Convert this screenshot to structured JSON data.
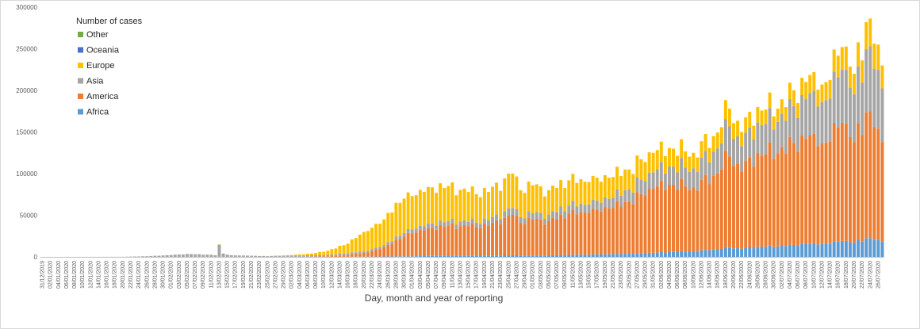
{
  "chart_data": {
    "type": "bar",
    "stacked": true,
    "title": "",
    "xlabel": "Day, month and year of reporting",
    "ylabel": "",
    "ylim": [
      0,
      300000
    ],
    "yticks": [
      0,
      50000,
      100000,
      150000,
      200000,
      250000,
      300000
    ],
    "grid": false,
    "legend": {
      "title": "Number of cases",
      "placement": "top-left",
      "entries": [
        "Other",
        "Oceania",
        "Europe",
        "Asia",
        "America",
        "Africa"
      ]
    },
    "colors": {
      "Africa": "#5b9bd5",
      "America": "#ed7d31",
      "Asia": "#a5a5a5",
      "Europe": "#ffc000",
      "Oceania": "#4472c4",
      "Other": "#70ad47"
    },
    "start_date": "2019-12-31",
    "end_date": "2020-07-27",
    "x_tick_labels": [
      "31/12/2019",
      "02/01/2020",
      "04/01/2020",
      "06/01/2020",
      "08/01/2020",
      "10/01/2020",
      "12/01/2020",
      "14/01/2020",
      "16/01/2020",
      "18/01/2020",
      "20/01/2020",
      "22/01/2020",
      "24/01/2020",
      "26/01/2020",
      "28/01/2020",
      "30/01/2020",
      "01/02/2020",
      "03/02/2020",
      "05/02/2020",
      "07/02/2020",
      "09/02/2020",
      "11/02/2020",
      "13/02/2020",
      "15/02/2020",
      "17/02/2020",
      "19/02/2020",
      "21/02/2020",
      "23/02/2020",
      "25/02/2020",
      "27/02/2020",
      "29/02/2020",
      "02/03/2020",
      "04/03/2020",
      "06/03/2020",
      "08/03/2020",
      "10/03/2020",
      "12/03/2020",
      "14/03/2020",
      "16/03/2020",
      "18/03/2020",
      "20/03/2020",
      "22/03/2020",
      "24/03/2020",
      "26/03/2020",
      "28/03/2020",
      "30/03/2020",
      "01/04/2020",
      "03/04/2020",
      "05/04/2020",
      "07/04/2020",
      "09/04/2020",
      "11/04/2020",
      "13/04/2020",
      "15/04/2020",
      "17/04/2020",
      "19/04/2020",
      "21/04/2020",
      "23/04/2020",
      "25/04/2020",
      "27/04/2020",
      "29/04/2020",
      "01/05/2020",
      "03/05/2020",
      "05/05/2020",
      "07/05/2020",
      "09/05/2020",
      "11/05/2020",
      "13/05/2020",
      "15/05/2020",
      "17/05/2020",
      "19/05/2020",
      "21/05/2020",
      "23/05/2020",
      "25/05/2020",
      "27/05/2020",
      "29/05/2020",
      "31/05/2020",
      "02/06/2020",
      "04/06/2020",
      "06/06/2020",
      "08/06/2020",
      "10/06/2020",
      "12/06/2020",
      "14/06/2020",
      "16/06/2020",
      "18/06/2020",
      "20/06/2020",
      "22/06/2020",
      "24/06/2020",
      "26/06/2020",
      "28/06/2020",
      "30/06/2020",
      "02/07/2020",
      "04/07/2020",
      "06/07/2020",
      "08/07/2020",
      "10/07/2020",
      "12/07/2020",
      "14/07/2020",
      "16/07/2020",
      "18/07/2020",
      "20/07/2020",
      "22/07/2020",
      "24/07/2020",
      "26/07/2020"
    ],
    "total_keyframes": [
      [
        "2019-12-31",
        0
      ],
      [
        "2020-01-20",
        100
      ],
      [
        "2020-01-26",
        800
      ],
      [
        "2020-01-31",
        2000
      ],
      [
        "2020-02-05",
        3500
      ],
      [
        "2020-02-10",
        2800
      ],
      [
        "2020-02-12",
        2000
      ],
      [
        "2020-02-13",
        15000
      ],
      [
        "2020-02-14",
        4000
      ],
      [
        "2020-02-16",
        2000
      ],
      [
        "2020-02-20",
        1500
      ],
      [
        "2020-02-25",
        1000
      ],
      [
        "2020-03-01",
        2000
      ],
      [
        "2020-03-05",
        3000
      ],
      [
        "2020-03-10",
        6000
      ],
      [
        "2020-03-15",
        14000
      ],
      [
        "2020-03-20",
        30000
      ],
      [
        "2020-03-25",
        45000
      ],
      [
        "2020-03-28",
        65000
      ],
      [
        "2020-04-01",
        73000
      ],
      [
        "2020-04-05",
        84000
      ],
      [
        "2020-04-10",
        85000
      ],
      [
        "2020-04-15",
        78000
      ],
      [
        "2020-04-20",
        78000
      ],
      [
        "2020-04-26",
        100000
      ],
      [
        "2020-04-28",
        80000
      ],
      [
        "2020-05-01",
        86000
      ],
      [
        "2020-05-05",
        80000
      ],
      [
        "2020-05-10",
        92000
      ],
      [
        "2020-05-15",
        90000
      ],
      [
        "2020-05-20",
        95000
      ],
      [
        "2020-05-25",
        105000
      ],
      [
        "2020-05-31",
        125000
      ],
      [
        "2020-06-05",
        130000
      ],
      [
        "2020-06-10",
        125000
      ],
      [
        "2020-06-15",
        145000
      ],
      [
        "2020-06-19",
        178000
      ],
      [
        "2020-06-22",
        150000
      ],
      [
        "2020-06-26",
        180000
      ],
      [
        "2020-07-01",
        178000
      ],
      [
        "2020-07-05",
        200000
      ],
      [
        "2020-07-10",
        222000
      ],
      [
        "2020-07-13",
        210000
      ],
      [
        "2020-07-17",
        252000
      ],
      [
        "2020-07-20",
        220000
      ],
      [
        "2020-07-23",
        282000
      ],
      [
        "2020-07-26",
        255000
      ],
      [
        "2020-07-27",
        230000
      ]
    ],
    "share_keyframes": [
      [
        "2019-12-31",
        0.0,
        0.0,
        1.0,
        0.0
      ],
      [
        "2020-02-20",
        0.0,
        0.02,
        0.95,
        0.03
      ],
      [
        "2020-03-01",
        0.0,
        0.05,
        0.7,
        0.25
      ],
      [
        "2020-03-10",
        0.01,
        0.08,
        0.25,
        0.66
      ],
      [
        "2020-03-20",
        0.01,
        0.15,
        0.06,
        0.78
      ],
      [
        "2020-04-01",
        0.01,
        0.38,
        0.06,
        0.55
      ],
      [
        "2020-04-15",
        0.02,
        0.45,
        0.07,
        0.46
      ],
      [
        "2020-05-01",
        0.02,
        0.5,
        0.09,
        0.39
      ],
      [
        "2020-05-15",
        0.03,
        0.56,
        0.11,
        0.3
      ],
      [
        "2020-06-01",
        0.04,
        0.62,
        0.16,
        0.18
      ],
      [
        "2020-06-15",
        0.06,
        0.61,
        0.2,
        0.13
      ],
      [
        "2020-07-01",
        0.07,
        0.63,
        0.21,
        0.09
      ],
      [
        "2020-07-27",
        0.08,
        0.52,
        0.28,
        0.12
      ]
    ]
  }
}
